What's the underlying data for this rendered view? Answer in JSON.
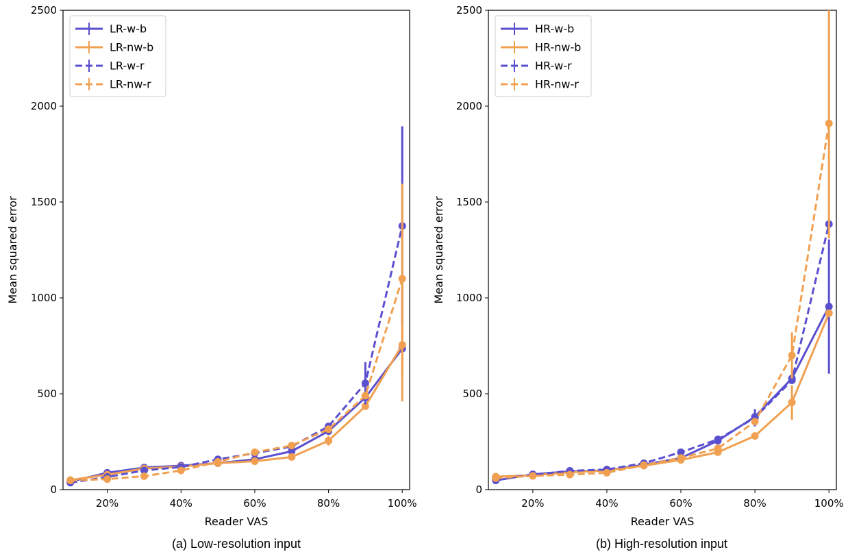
{
  "chart_data": [
    {
      "type": "line",
      "caption": "(a) Low-resolution input",
      "xlabel": "Reader VAS",
      "ylabel": "Mean squared error",
      "x": [
        10,
        20,
        30,
        40,
        50,
        60,
        70,
        80,
        90,
        100
      ],
      "xticks": [
        20,
        40,
        60,
        80,
        100
      ],
      "xtick_labels": [
        "20%",
        "40%",
        "60%",
        "80%",
        "100%"
      ],
      "xlim": [
        8,
        102
      ],
      "ylim": [
        0,
        2500
      ],
      "yticks": [
        0,
        500,
        1000,
        1500,
        2000,
        2500
      ],
      "ytick_labels": [
        "0",
        "500",
        "1000",
        "1500",
        "2000",
        "2500"
      ],
      "grid": false,
      "legend_position": "top-left",
      "series": [
        {
          "name": "LR-w-b",
          "color": "#5a4fcf",
          "style": "solid",
          "values": [
            42,
            88,
            115,
            125,
            138,
            158,
            200,
            305,
            480,
            735
          ],
          "errors": [
            0,
            0,
            0,
            0,
            0,
            0,
            0,
            0,
            0,
            0
          ]
        },
        {
          "name": "LR-nw-b",
          "color": "#f0a050",
          "style": "solid",
          "values": [
            50,
            78,
            110,
            120,
            138,
            148,
            170,
            255,
            435,
            755
          ],
          "errors": [
            0,
            0,
            0,
            0,
            0,
            0,
            0,
            25,
            0,
            295
          ]
        },
        {
          "name": "LR-w-r",
          "color": "#5a4fcf",
          "style": "dashed",
          "values": [
            36,
            66,
            100,
            118,
            158,
            190,
            225,
            330,
            555,
            1375
          ],
          "errors": [
            0,
            0,
            0,
            0,
            0,
            0,
            0,
            0,
            110,
            520
          ]
        },
        {
          "name": "LR-nw-r",
          "color": "#f0a050",
          "style": "dashed",
          "values": [
            48,
            55,
            70,
            100,
            145,
            195,
            230,
            315,
            490,
            1100
          ],
          "errors": [
            0,
            0,
            0,
            0,
            0,
            0,
            0,
            0,
            0,
            495
          ]
        }
      ]
    },
    {
      "type": "line",
      "caption": "(b) High-resolution input",
      "xlabel": "Reader VAS",
      "ylabel": "Mean squared error",
      "x": [
        10,
        20,
        30,
        40,
        50,
        60,
        70,
        80,
        90,
        100
      ],
      "xticks": [
        20,
        40,
        60,
        80,
        100
      ],
      "xtick_labels": [
        "20%",
        "40%",
        "60%",
        "80%",
        "100%"
      ],
      "xlim": [
        8,
        102
      ],
      "ylim": [
        0,
        2500
      ],
      "yticks": [
        0,
        500,
        1000,
        1500,
        2000,
        2500
      ],
      "ytick_labels": [
        "0",
        "500",
        "1000",
        "1500",
        "2000",
        "2500"
      ],
      "grid": false,
      "legend_position": "top-left",
      "series": [
        {
          "name": "HR-w-b",
          "color": "#5a4fcf",
          "style": "solid",
          "values": [
            48,
            80,
            95,
            100,
            130,
            165,
            255,
            380,
            580,
            955
          ],
          "errors": [
            0,
            0,
            0,
            0,
            0,
            0,
            0,
            0,
            0,
            350
          ]
        },
        {
          "name": "HR-nw-b",
          "color": "#f0a050",
          "style": "solid",
          "values": [
            68,
            75,
            90,
            100,
            125,
            155,
            195,
            280,
            455,
            920
          ],
          "errors": [
            0,
            0,
            0,
            0,
            0,
            0,
            0,
            0,
            90,
            0
          ]
        },
        {
          "name": "HR-w-r",
          "color": "#5a4fcf",
          "style": "dashed",
          "values": [
            55,
            78,
            98,
            105,
            138,
            195,
            262,
            375,
            570,
            1385
          ],
          "errors": [
            0,
            0,
            0,
            0,
            0,
            0,
            0,
            45,
            0,
            0
          ]
        },
        {
          "name": "HR-nw-r",
          "color": "#f0a050",
          "style": "dashed",
          "values": [
            60,
            72,
            78,
            88,
            128,
            165,
            215,
            355,
            700,
            1910
          ],
          "errors": [
            0,
            0,
            0,
            0,
            0,
            0,
            0,
            0,
            120,
            600
          ]
        }
      ]
    }
  ]
}
